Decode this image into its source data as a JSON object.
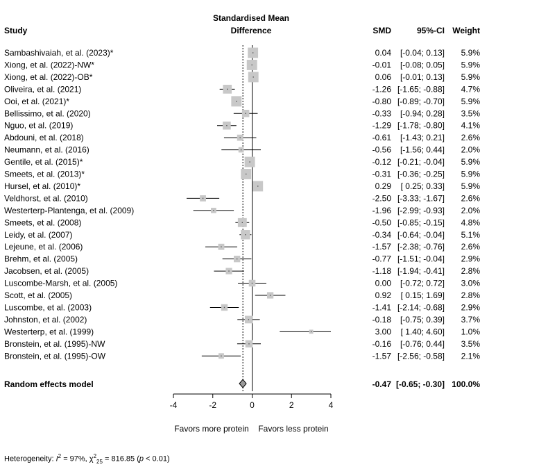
{
  "chart_data": {
    "type": "forest",
    "title": "Standardised Mean Difference",
    "title_lines": [
      "Standardised Mean",
      "Difference"
    ],
    "columns": {
      "study": "Study",
      "smd": "SMD",
      "ci": "95%-CI",
      "weight": "Weight"
    },
    "xlim": [
      -4,
      4
    ],
    "ticks": [
      -4,
      -2,
      0,
      2,
      4
    ],
    "tick_labels": [
      "-4",
      "-2",
      "0",
      "2",
      "4"
    ],
    "favors_left": "Favors more protein",
    "favors_right": "Favors less protein",
    "studies": [
      {
        "study": "Sambashivaiah, et al. (2023)*",
        "smd": 0.04,
        "lo": -0.04,
        "hi": 0.13,
        "weight": 5.9,
        "smd_text": "0.04",
        "ci_text": "[-0.04; 0.13]",
        "weight_text": "5.9%"
      },
      {
        "study": "Xiong, et al. (2022)-NW*",
        "smd": -0.01,
        "lo": -0.08,
        "hi": 0.05,
        "weight": 5.9,
        "smd_text": "-0.01",
        "ci_text": "[-0.08; 0.05]",
        "weight_text": "5.9%"
      },
      {
        "study": "Xiong, et al. (2022)-OB*",
        "smd": 0.06,
        "lo": -0.01,
        "hi": 0.13,
        "weight": 5.9,
        "smd_text": "0.06",
        "ci_text": "[-0.01; 0.13]",
        "weight_text": "5.9%"
      },
      {
        "study": "Oliveira, et al. (2021)",
        "smd": -1.26,
        "lo": -1.65,
        "hi": -0.88,
        "weight": 4.7,
        "smd_text": "-1.26",
        "ci_text": "[-1.65; -0.88]",
        "weight_text": "4.7%"
      },
      {
        "study": "Ooi, et al. (2021)*",
        "smd": -0.8,
        "lo": -0.89,
        "hi": -0.7,
        "weight": 5.9,
        "smd_text": "-0.80",
        "ci_text": "[-0.89; -0.70]",
        "weight_text": "5.9%"
      },
      {
        "study": "Bellissimo, et al. (2020)",
        "smd": -0.33,
        "lo": -0.94,
        "hi": 0.28,
        "weight": 3.5,
        "smd_text": "-0.33",
        "ci_text": "[-0.94; 0.28]",
        "weight_text": "3.5%"
      },
      {
        "study": "Nguo, et al. (2019)",
        "smd": -1.29,
        "lo": -1.78,
        "hi": -0.8,
        "weight": 4.1,
        "smd_text": "-1.29",
        "ci_text": "[-1.78; -0.80]",
        "weight_text": "4.1%"
      },
      {
        "study": "Abdouni, et al. (2018)",
        "smd": -0.61,
        "lo": -1.43,
        "hi": 0.21,
        "weight": 2.6,
        "smd_text": "-0.61",
        "ci_text": "[-1.43; 0.21]",
        "weight_text": "2.6%"
      },
      {
        "study": "Neumann, et al. (2016)",
        "smd": -0.56,
        "lo": -1.56,
        "hi": 0.44,
        "weight": 2.0,
        "smd_text": "-0.56",
        "ci_text": "[-1.56; 0.44]",
        "weight_text": "2.0%"
      },
      {
        "study": "Gentile, et al. (2015)*",
        "smd": -0.12,
        "lo": -0.21,
        "hi": -0.04,
        "weight": 5.9,
        "smd_text": "-0.12",
        "ci_text": "[-0.21; -0.04]",
        "weight_text": "5.9%"
      },
      {
        "study": "Smeets, et al. (2013)*",
        "smd": -0.31,
        "lo": -0.36,
        "hi": -0.25,
        "weight": 5.9,
        "smd_text": "-0.31",
        "ci_text": "[-0.36; -0.25]",
        "weight_text": "5.9%"
      },
      {
        "study": "Hursel, et al. (2010)*",
        "smd": 0.29,
        "lo": 0.25,
        "hi": 0.33,
        "weight": 5.9,
        "smd_text": "0.29",
        "ci_text": "[ 0.25; 0.33]",
        "weight_text": "5.9%"
      },
      {
        "study": "Veldhorst, et al. (2010)",
        "smd": -2.5,
        "lo": -3.33,
        "hi": -1.67,
        "weight": 2.6,
        "smd_text": "-2.50",
        "ci_text": "[-3.33; -1.67]",
        "weight_text": "2.6%"
      },
      {
        "study": "Westerterp-Plantenga, et al. (2009)",
        "smd": -1.96,
        "lo": -2.99,
        "hi": -0.93,
        "weight": 2.0,
        "smd_text": "-1.96",
        "ci_text": "[-2.99; -0.93]",
        "weight_text": "2.0%"
      },
      {
        "study": "Smeets, et al. (2008)",
        "smd": -0.5,
        "lo": -0.85,
        "hi": -0.15,
        "weight": 4.8,
        "smd_text": "-0.50",
        "ci_text": "[-0.85; -0.15]",
        "weight_text": "4.8%"
      },
      {
        "study": "Leidy, et al. (2007)",
        "smd": -0.34,
        "lo": -0.64,
        "hi": -0.04,
        "weight": 5.1,
        "smd_text": "-0.34",
        "ci_text": "[-0.64; -0.04]",
        "weight_text": "5.1%"
      },
      {
        "study": "Lejeune, et al. (2006)",
        "smd": -1.57,
        "lo": -2.38,
        "hi": -0.76,
        "weight": 2.6,
        "smd_text": "-1.57",
        "ci_text": "[-2.38; -0.76]",
        "weight_text": "2.6%"
      },
      {
        "study": "Brehm, et al. (2005)",
        "smd": -0.77,
        "lo": -1.51,
        "hi": -0.04,
        "weight": 2.9,
        "smd_text": "-0.77",
        "ci_text": "[-1.51; -0.04]",
        "weight_text": "2.9%"
      },
      {
        "study": "Jacobsen, et al. (2005)",
        "smd": -1.18,
        "lo": -1.94,
        "hi": -0.41,
        "weight": 2.8,
        "smd_text": "-1.18",
        "ci_text": "[-1.94; -0.41]",
        "weight_text": "2.8%"
      },
      {
        "study": "Luscombe-Marsh, et al. (2005)",
        "smd": 0.0,
        "lo": -0.72,
        "hi": 0.72,
        "weight": 3.0,
        "smd_text": "0.00",
        "ci_text": "[-0.72; 0.72]",
        "weight_text": "3.0%"
      },
      {
        "study": "Scott, et al. (2005)",
        "smd": 0.92,
        "lo": 0.15,
        "hi": 1.69,
        "weight": 2.8,
        "smd_text": "0.92",
        "ci_text": "[ 0.15; 1.69]",
        "weight_text": "2.8%"
      },
      {
        "study": "Luscombe, et al. (2003)",
        "smd": -1.41,
        "lo": -2.14,
        "hi": -0.68,
        "weight": 2.9,
        "smd_text": "-1.41",
        "ci_text": "[-2.14; -0.68]",
        "weight_text": "2.9%"
      },
      {
        "study": "Johnston, et al. (2002)",
        "smd": -0.18,
        "lo": -0.75,
        "hi": 0.39,
        "weight": 3.7,
        "smd_text": "-0.18",
        "ci_text": "[-0.75; 0.39]",
        "weight_text": "3.7%"
      },
      {
        "study": "Westerterp, et al. (1999)",
        "smd": 3.0,
        "lo": 1.4,
        "hi": 4.6,
        "weight": 1.0,
        "smd_text": "3.00",
        "ci_text": "[ 1.40; 4.60]",
        "weight_text": "1.0%"
      },
      {
        "study": "Bronstein, et al. (1995)-NW",
        "smd": -0.16,
        "lo": -0.76,
        "hi": 0.44,
        "weight": 3.5,
        "smd_text": "-0.16",
        "ci_text": "[-0.76; 0.44]",
        "weight_text": "3.5%"
      },
      {
        "study": "Bronstein, et al. (1995)-OW",
        "smd": -1.57,
        "lo": -2.56,
        "hi": -0.58,
        "weight": 2.1,
        "smd_text": "-1.57",
        "ci_text": "[-2.56; -0.58]",
        "weight_text": "2.1%"
      }
    ],
    "pooled": {
      "label": "Random effects model",
      "smd": -0.47,
      "lo": -0.65,
      "hi": -0.3,
      "weight": 100.0,
      "smd_text": "-0.47",
      "ci_text": "[-0.65; -0.30]",
      "weight_text": "100.0%"
    },
    "heterogeneity": {
      "label": "Heterogeneity:",
      "i2_text": "= 97%,",
      "chi_sub": "25",
      "chi_text": "= 816.85",
      "p_text": "< 0.01"
    },
    "colors": {
      "square": "#c8c8c8",
      "diamond": "#9a9a9a",
      "line": "#000000"
    }
  }
}
